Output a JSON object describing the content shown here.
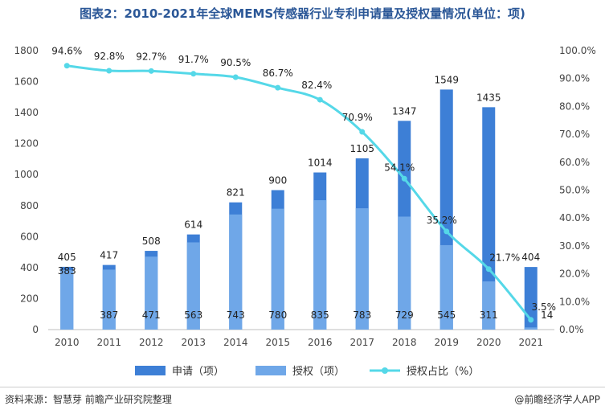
{
  "title": "图表2：2010-2021年全球MEMS传感器行业专利申请量及授权量情况(单位：项)",
  "footer": {
    "source": "资料来源：智慧芽 前瞻产业研究院整理",
    "brand": "@前瞻经济学人APP"
  },
  "chart_data": {
    "type": "bar",
    "categories": [
      "2010",
      "2011",
      "2012",
      "2013",
      "2014",
      "2015",
      "2016",
      "2017",
      "2018",
      "2019",
      "2020",
      "2021"
    ],
    "series": [
      {
        "name": "申请（项）",
        "type": "bar",
        "color": "#3d7fd6",
        "values": [
          405,
          417,
          508,
          614,
          821,
          900,
          1014,
          1105,
          1347,
          1549,
          1435,
          404
        ]
      },
      {
        "name": "授权（项）",
        "type": "bar",
        "color": "#6fa7e8",
        "values": [
          383,
          387,
          471,
          563,
          743,
          780,
          835,
          783,
          729,
          545,
          311,
          14
        ]
      },
      {
        "name": "授权占比（%）",
        "type": "line",
        "axis": "right",
        "color": "#55d8e8",
        "values": [
          94.6,
          92.8,
          92.7,
          91.7,
          90.5,
          86.7,
          82.4,
          70.9,
          54.1,
          35.2,
          21.7,
          3.5
        ]
      }
    ],
    "yaxis_left": {
      "min": 0,
      "max": 1800,
      "ticks": [
        "0",
        "200",
        "400",
        "600",
        "800",
        "1000",
        "1200",
        "1400",
        "1600",
        "1800"
      ]
    },
    "yaxis_right": {
      "min": 0,
      "max": 100,
      "ticks": [
        "0.0%",
        "10.0%",
        "20.0%",
        "30.0%",
        "40.0%",
        "50.0%",
        "60.0%",
        "70.0%",
        "80.0%",
        "90.0%",
        "100.0%"
      ]
    },
    "pct_labels": [
      "94.6%",
      "92.8%",
      "92.7%",
      "91.7%",
      "90.5%",
      "86.7%",
      "82.4%",
      "70.9%",
      "54.1%",
      "35.2%",
      "21.7%",
      "3.5%"
    ],
    "grid": false,
    "legend": "bottom"
  }
}
